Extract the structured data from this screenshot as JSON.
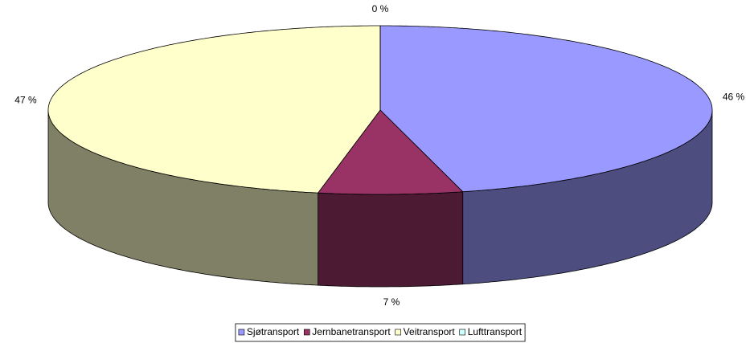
{
  "chart_data": {
    "type": "pie3d",
    "categories": [
      "Sjøtransport",
      "Jernbanetransport",
      "Veitransport",
      "Lufttransport"
    ],
    "values": [
      46,
      7,
      47,
      0
    ],
    "value_labels": [
      "46 %",
      "7 %",
      "47 %",
      "0 %"
    ],
    "colors": [
      "#9999FF",
      "#993366",
      "#FFFFCC",
      "#CCFFFF"
    ],
    "legend": "bottom"
  }
}
